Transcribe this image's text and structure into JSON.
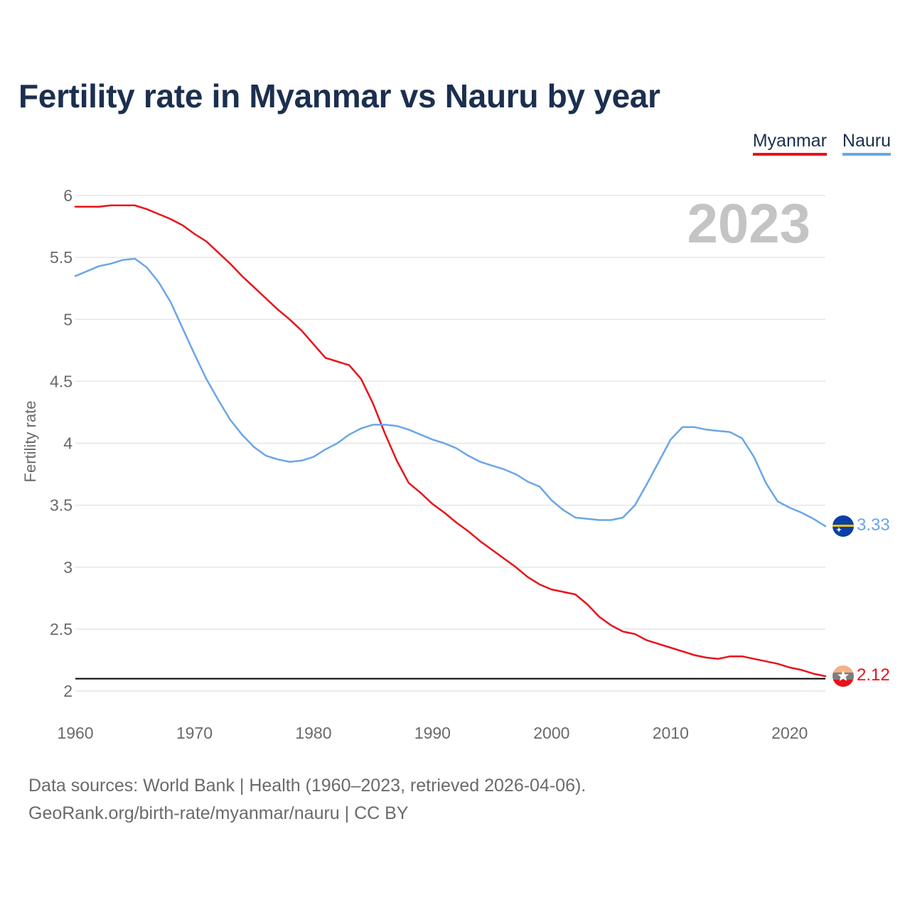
{
  "title": "Fertility rate in Myanmar vs Nauru by year",
  "legend": {
    "myanmar": "Myanmar",
    "nauru": "Nauru"
  },
  "footer": {
    "sources": "Data sources: World Bank | Health (1960–2023, retrieved 2026-04-06).",
    "credit": "GeoRank.org/birth-rate/myanmar/nauru | CC BY"
  },
  "colors": {
    "myanmar": "#e8131b",
    "nauru": "#6aa6e8",
    "title": "#1b2f4f",
    "grid": "#e6e6e6",
    "tick": "#6a6a6a",
    "year_label": "#c4c4c4"
  },
  "chart_data": {
    "type": "line",
    "title": "Fertility rate in Myanmar vs Nauru by year",
    "ylabel": "Fertility rate",
    "xlabel": "",
    "xlim": [
      1960,
      2023
    ],
    "ylim": [
      2,
      6
    ],
    "y_ticks": [
      "2",
      "2.5",
      "3",
      "3.5",
      "4",
      "4.5",
      "5",
      "5.5",
      "6"
    ],
    "x_ticks": [
      "1960",
      "1970",
      "1980",
      "1990",
      "2000",
      "2010",
      "2020"
    ],
    "year_label": "2023",
    "reference_line": 2.1,
    "grid": true,
    "legend_position": "top-right",
    "x": [
      1960,
      1961,
      1962,
      1963,
      1964,
      1965,
      1966,
      1967,
      1968,
      1969,
      1970,
      1971,
      1972,
      1973,
      1974,
      1975,
      1976,
      1977,
      1978,
      1979,
      1980,
      1981,
      1982,
      1983,
      1984,
      1985,
      1986,
      1987,
      1988,
      1989,
      1990,
      1991,
      1992,
      1993,
      1994,
      1995,
      1996,
      1997,
      1998,
      1999,
      2000,
      2001,
      2002,
      2003,
      2004,
      2005,
      2006,
      2007,
      2008,
      2009,
      2010,
      2011,
      2012,
      2013,
      2014,
      2015,
      2016,
      2017,
      2018,
      2019,
      2020,
      2021,
      2022,
      2023
    ],
    "series": [
      {
        "name": "Myanmar",
        "end_label": "2.12",
        "values": [
          5.91,
          5.91,
          5.91,
          5.92,
          5.92,
          5.92,
          5.89,
          5.85,
          5.81,
          5.76,
          5.69,
          5.63,
          5.54,
          5.45,
          5.35,
          5.26,
          5.17,
          5.08,
          5.0,
          4.91,
          4.8,
          4.69,
          4.66,
          4.63,
          4.52,
          4.32,
          4.08,
          3.86,
          3.68,
          3.6,
          3.51,
          3.44,
          3.36,
          3.29,
          3.21,
          3.14,
          3.07,
          3.0,
          2.92,
          2.86,
          2.82,
          2.8,
          2.78,
          2.7,
          2.6,
          2.53,
          2.48,
          2.46,
          2.41,
          2.38,
          2.35,
          2.32,
          2.29,
          2.27,
          2.26,
          2.28,
          2.28,
          2.26,
          2.24,
          2.22,
          2.19,
          2.17,
          2.14,
          2.12
        ]
      },
      {
        "name": "Nauru",
        "end_label": "3.33",
        "values": [
          5.35,
          5.39,
          5.43,
          5.45,
          5.48,
          5.49,
          5.42,
          5.3,
          5.14,
          4.93,
          4.72,
          4.52,
          4.35,
          4.19,
          4.07,
          3.97,
          3.9,
          3.87,
          3.85,
          3.86,
          3.89,
          3.95,
          4.0,
          4.07,
          4.12,
          4.15,
          4.15,
          4.14,
          4.11,
          4.07,
          4.03,
          4.0,
          3.96,
          3.9,
          3.85,
          3.82,
          3.79,
          3.75,
          3.69,
          3.65,
          3.54,
          3.46,
          3.4,
          3.39,
          3.38,
          3.38,
          3.4,
          3.5,
          3.67,
          3.85,
          4.03,
          4.13,
          4.13,
          4.11,
          4.1,
          4.09,
          4.04,
          3.89,
          3.68,
          3.53,
          3.48,
          3.44,
          3.39,
          3.33
        ]
      }
    ]
  }
}
